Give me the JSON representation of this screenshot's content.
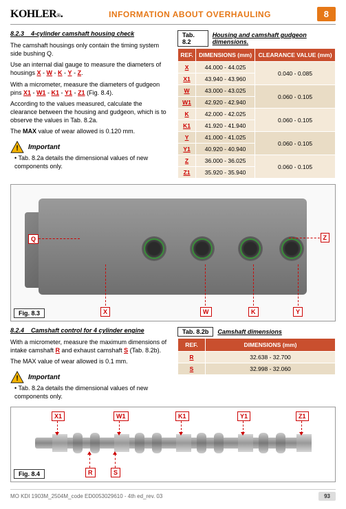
{
  "header": {
    "logo": "KOHLER",
    "logo_sub": "®",
    "title": "INFORMATION ABOUT OVERHAULING",
    "chapter": "8"
  },
  "sec823": {
    "num": "8.2.3",
    "title": "4-cylinder camshaft housing check",
    "p1": "The camshaft housings only contain the timing system side bushing Q.",
    "p2a": "Use an internal dial gauge to measure the diameters of housings ",
    "p2_refs": [
      "X",
      "W",
      "K",
      "Y",
      "Z"
    ],
    "p2b": ".",
    "p3a": "With a micrometer, measure the diameters of gudgeon pins ",
    "p3_refs": [
      "X1",
      "W1",
      "K1",
      "Y1",
      "Z1"
    ],
    "p3b": " (Fig. 8.4).",
    "p4": "According to the values measured, calculate the clearance between the housing and gudgeon, which is to observe the values in Tab. 8.2a.",
    "p5": "The MAX value of wear allowed is 0.120 mm.",
    "important": "Important",
    "bullet": "• Tab. 8.2a details the dimensional values of new components only."
  },
  "tab82": {
    "badge": "Tab. 8.2",
    "title": "Housing and camshaft gudgeon dimensions.",
    "h1": "REF.",
    "h2": "DIMENSIONS (mm)",
    "h3": "CLEARANCE VALUE (mm)",
    "rows": [
      {
        "ref": "X",
        "dim": "44.000 - 44.025",
        "clr": "0.040 - 0.085",
        "span": 2
      },
      {
        "ref": "X1",
        "dim": "43.940 - 43.960"
      },
      {
        "ref": "W",
        "dim": "43.000 - 43.025",
        "clr": "0.060 - 0.105",
        "span": 2
      },
      {
        "ref": "W1",
        "dim": "42.920 - 42.940"
      },
      {
        "ref": "K",
        "dim": "42.000 - 42.025",
        "clr": "0.060 - 0.105",
        "span": 2
      },
      {
        "ref": "K1",
        "dim": "41.920 - 41.940"
      },
      {
        "ref": "Y",
        "dim": "41.000 - 41.025",
        "clr": "0.060 - 0.105",
        "span": 2
      },
      {
        "ref": "Y1",
        "dim": "40.920 - 40.940"
      },
      {
        "ref": "Z",
        "dim": "36.000 - 36.025",
        "clr": "0.060 - 0.105",
        "span": 2
      },
      {
        "ref": "Z1",
        "dim": "35.920 - 35.940"
      }
    ]
  },
  "fig83": {
    "label": "Fig. 8.3",
    "callouts": {
      "Q": "Q",
      "X": "X",
      "W": "W",
      "K": "K",
      "Y": "Y",
      "Z": "Z"
    }
  },
  "sec824": {
    "num": "8.2.4",
    "title": "Camshaft control for 4 cylinder engine",
    "p1a": "With a micrometer, measure the maximum dimensions of intake camshaft ",
    "p1r1": "R",
    "p1b": " and exhaust camshaft ",
    "p1r2": "S",
    "p1c": " (Tab. 8.2b).",
    "p2": "The MAX value of wear allowed is 0.1 mm.",
    "important": "Important",
    "bullet": "• Tab. 8.2a details the dimensional values of new components only."
  },
  "tab82b": {
    "badge": "Tab. 8.2b",
    "title": "Camshaft  dimensions",
    "h1": "REF.",
    "h2": "DIMENSIONS (mm)",
    "rows": [
      {
        "ref": "R",
        "dim": "32.638 - 32.700"
      },
      {
        "ref": "S",
        "dim": "32.998 - 32.060"
      }
    ]
  },
  "fig84": {
    "label": "Fig. 8.4",
    "top": [
      "X1",
      "W1",
      "K1",
      "Y1",
      "Z1"
    ],
    "bottom": [
      "R",
      "S"
    ]
  },
  "footer": {
    "code": "MO KDI 1903M_2504M_code ED0053029610 - 4th ed_rev. 03",
    "page": "93"
  },
  "colors": {
    "accent": "#e67817",
    "ref": "#c00",
    "th_bg": "#c94f2e"
  }
}
